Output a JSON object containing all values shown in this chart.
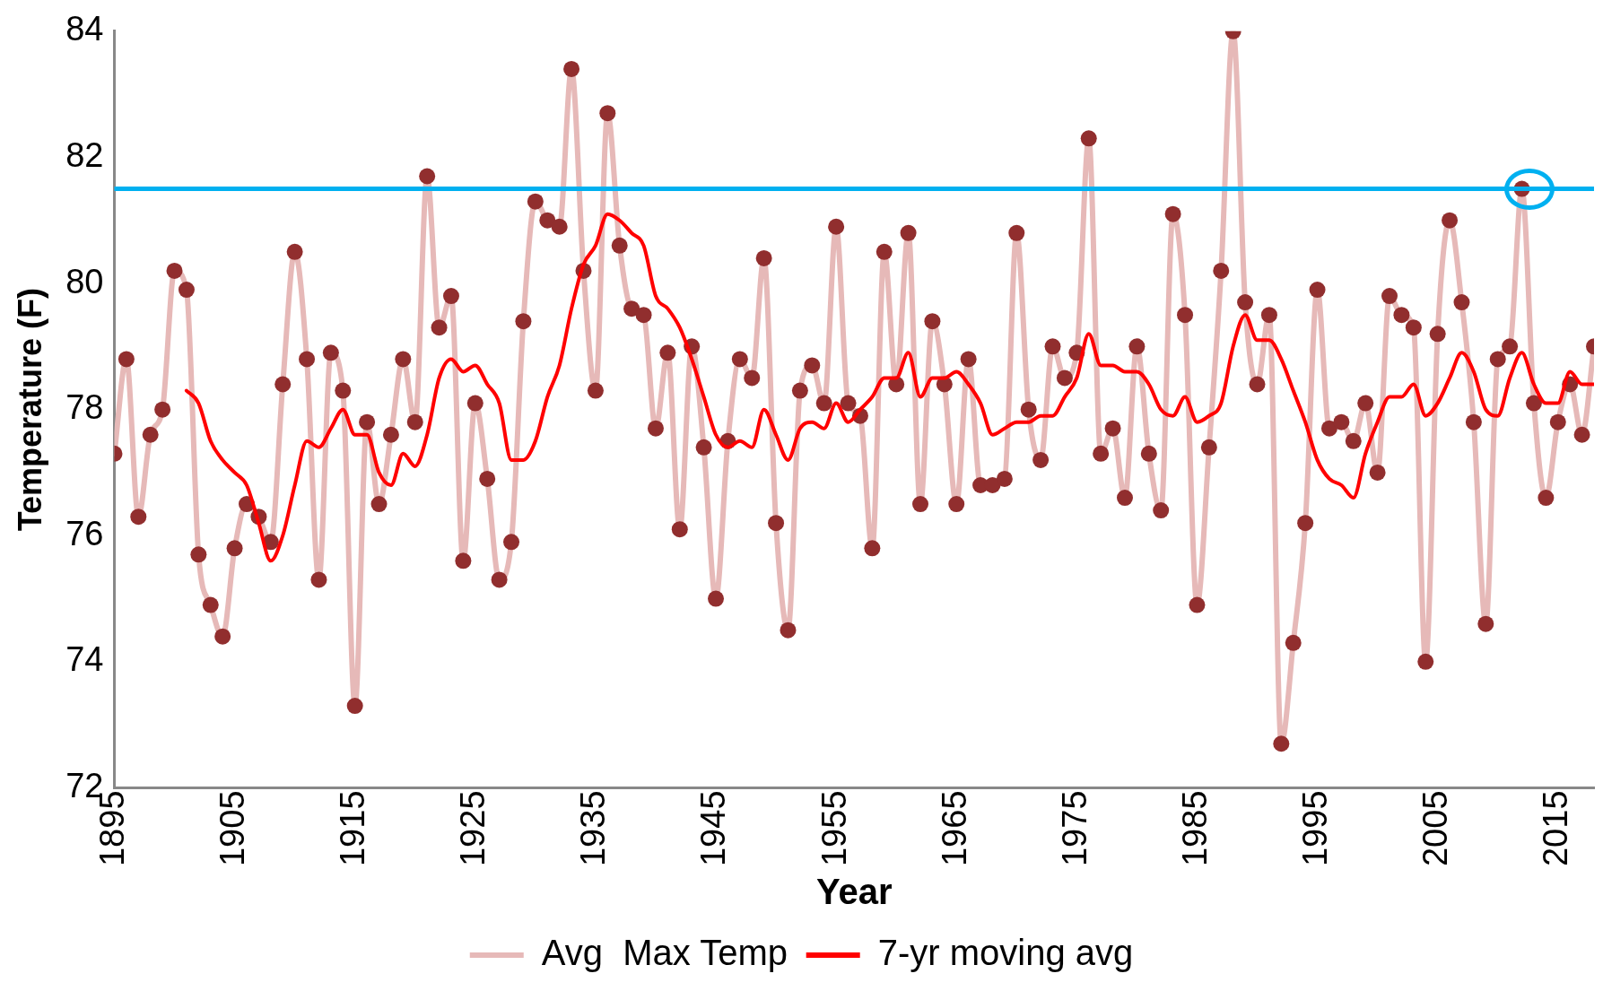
{
  "chart_data": {
    "type": "line",
    "xlabel": "Year",
    "ylabel": "Temperature (F)",
    "x": [
      1895,
      1896,
      1897,
      1898,
      1899,
      1900,
      1901,
      1902,
      1903,
      1904,
      1905,
      1906,
      1907,
      1908,
      1909,
      1910,
      1911,
      1912,
      1913,
      1914,
      1915,
      1916,
      1917,
      1918,
      1919,
      1920,
      1921,
      1922,
      1923,
      1924,
      1925,
      1926,
      1927,
      1928,
      1929,
      1930,
      1931,
      1932,
      1933,
      1934,
      1935,
      1936,
      1937,
      1938,
      1939,
      1940,
      1941,
      1942,
      1943,
      1944,
      1945,
      1946,
      1947,
      1948,
      1949,
      1950,
      1951,
      1952,
      1953,
      1954,
      1955,
      1956,
      1957,
      1958,
      1959,
      1960,
      1961,
      1962,
      1963,
      1964,
      1965,
      1966,
      1967,
      1968,
      1969,
      1970,
      1971,
      1972,
      1973,
      1974,
      1975,
      1976,
      1977,
      1978,
      1979,
      1980,
      1981,
      1982,
      1983,
      1984,
      1985,
      1986,
      1987,
      1988,
      1989,
      1990,
      1991,
      1992,
      1993,
      1994,
      1995,
      1996,
      1997,
      1998,
      1999,
      2000,
      2001,
      2002,
      2003,
      2004,
      2005,
      2006,
      2007,
      2008,
      2009,
      2010,
      2011,
      2012,
      2013,
      2014,
      2015,
      2016,
      2017,
      2018
    ],
    "series": [
      {
        "name": "Avg  Max Temp",
        "color": "#e6b9b8",
        "marker": "circle",
        "values": [
          77.3,
          78.8,
          76.3,
          77.6,
          78.0,
          80.2,
          79.9,
          75.7,
          74.9,
          74.4,
          75.8,
          76.5,
          76.3,
          75.9,
          78.4,
          80.5,
          78.8,
          75.3,
          78.9,
          78.3,
          73.3,
          77.8,
          76.5,
          77.6,
          78.8,
          77.8,
          81.7,
          79.3,
          79.8,
          75.6,
          78.1,
          76.9,
          75.3,
          75.9,
          79.4,
          81.3,
          81.0,
          80.9,
          83.4,
          80.2,
          78.3,
          82.7,
          80.6,
          79.6,
          79.5,
          77.7,
          78.9,
          76.1,
          79.0,
          77.4,
          75.0,
          77.5,
          78.8,
          78.5,
          80.4,
          76.2,
          74.5,
          78.3,
          78.7,
          78.1,
          80.9,
          78.1,
          77.9,
          75.8,
          80.5,
          78.4,
          80.8,
          76.5,
          79.4,
          78.4,
          76.5,
          78.8,
          76.8,
          76.8,
          76.9,
          80.8,
          78.0,
          77.2,
          79.0,
          78.5,
          78.9,
          82.3,
          77.3,
          77.7,
          76.6,
          79.0,
          77.3,
          76.4,
          81.1,
          79.5,
          74.9,
          77.4,
          80.2,
          84.0,
          79.7,
          78.4,
          79.5,
          72.7,
          74.3,
          76.2,
          79.9,
          77.7,
          77.8,
          77.5,
          78.1,
          77.0,
          79.8,
          79.5,
          79.3,
          74.0,
          79.2,
          81.0,
          79.7,
          77.8,
          74.6,
          78.8,
          79.0,
          81.5,
          78.1,
          76.6,
          77.8,
          78.4,
          77.6,
          79.0
        ]
      },
      {
        "name": "7-yr moving avg",
        "color": "#ff0000",
        "marker": "none",
        "values": [
          null,
          null,
          null,
          null,
          null,
          null,
          78.3,
          78.1,
          77.5,
          77.2,
          77.0,
          76.8,
          76.2,
          75.6,
          76.0,
          76.8,
          77.5,
          77.4,
          77.7,
          78.0,
          77.6,
          77.6,
          77.0,
          76.8,
          77.3,
          77.1,
          77.6,
          78.5,
          78.8,
          78.6,
          78.7,
          78.4,
          78.1,
          77.2,
          77.2,
          77.5,
          78.2,
          78.7,
          79.6,
          80.3,
          80.6,
          81.1,
          81.0,
          80.8,
          80.6,
          79.8,
          79.6,
          79.3,
          78.8,
          78.2,
          77.6,
          77.4,
          77.5,
          77.4,
          78.0,
          77.6,
          77.2,
          77.7,
          77.8,
          77.7,
          78.1,
          77.8,
          78.0,
          78.2,
          78.5,
          78.5,
          78.9,
          78.2,
          78.5,
          78.5,
          78.6,
          78.4,
          78.1,
          77.6,
          77.7,
          77.8,
          77.8,
          77.9,
          77.9,
          78.2,
          78.5,
          79.2,
          78.7,
          78.7,
          78.6,
          78.6,
          78.4,
          78.0,
          77.9,
          78.2,
          77.8,
          77.9,
          78.1,
          79.0,
          79.5,
          79.1,
          79.1,
          78.8,
          78.3,
          77.8,
          77.2,
          76.9,
          76.8,
          76.6,
          77.3,
          77.8,
          78.2,
          78.2,
          78.4,
          77.9,
          78.1,
          78.5,
          78.9,
          78.6,
          78.0,
          77.9,
          78.5,
          78.9,
          78.4,
          78.1,
          78.1,
          78.6,
          78.4,
          78.4
        ]
      }
    ],
    "xlim": [
      1895,
      2018
    ],
    "xticks": [
      1895,
      1905,
      1915,
      1925,
      1935,
      1945,
      1955,
      1965,
      1975,
      1985,
      1995,
      2005,
      2015
    ],
    "ylim": [
      72,
      84
    ],
    "yticks": [
      72,
      74,
      76,
      78,
      80,
      82,
      84
    ],
    "ref_lines": [
      {
        "axis": "y",
        "value": 81.5,
        "color": "#00b0f0"
      }
    ],
    "grid": false,
    "legend": "bottom",
    "line_style": "solid"
  }
}
